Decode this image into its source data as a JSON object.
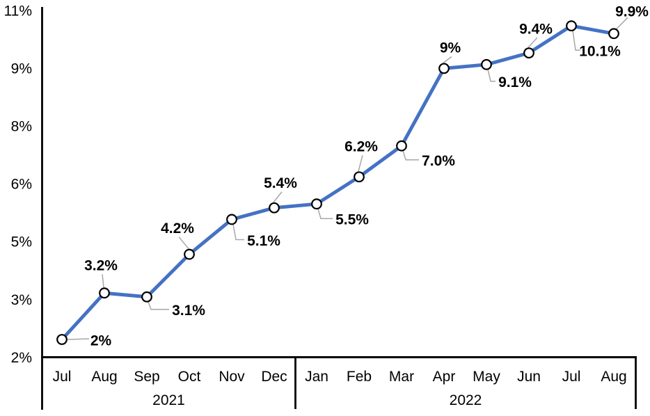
{
  "chart_data": {
    "type": "line",
    "title": "",
    "y_axis": {
      "tick_labels": [
        "11%",
        "9%",
        "8%",
        "6%",
        "5%",
        "3%",
        "2%"
      ],
      "min": 2,
      "max": 11,
      "unit": "%"
    },
    "x_groups": [
      {
        "year": "2021",
        "months": [
          "Jul",
          "Aug",
          "Sep",
          "Oct",
          "Nov",
          "Dec"
        ]
      },
      {
        "year": "2022",
        "months": [
          "Jan",
          "Feb",
          "Mar",
          "Apr",
          "May",
          "Jun",
          "Jul",
          "Aug"
        ]
      }
    ],
    "series": [
      {
        "name": "monthly-percentage",
        "points": [
          {
            "month": "Jul 2021",
            "value": 2.0,
            "label": "2%",
            "label_side": "right",
            "label_offset": [
              56,
              1
            ]
          },
          {
            "month": "Aug 2021",
            "value": 3.2,
            "label": "3.2%",
            "label_side": "above",
            "label_offset": [
              -5,
              -40
            ]
          },
          {
            "month": "Sep 2021",
            "value": 3.1,
            "label": "3.1%",
            "label_side": "below-right",
            "label_offset": [
              60,
              19
            ]
          },
          {
            "month": "Oct 2021",
            "value": 4.2,
            "label": "4.2%",
            "label_side": "above",
            "label_offset": [
              -17,
              -38
            ]
          },
          {
            "month": "Nov 2021",
            "value": 5.1,
            "label": "5.1%",
            "label_side": "below-right",
            "label_offset": [
              46,
              30
            ]
          },
          {
            "month": "Dec 2021",
            "value": 5.4,
            "label": "5.4%",
            "label_side": "above",
            "label_offset": [
              9,
              -36
            ]
          },
          {
            "month": "Jan 2022",
            "value": 5.5,
            "label": "5.5%",
            "label_side": "below-right",
            "label_offset": [
              51,
              22
            ]
          },
          {
            "month": "Feb 2022",
            "value": 6.2,
            "label": "6.2%",
            "label_side": "above",
            "label_offset": [
              3,
              -44
            ]
          },
          {
            "month": "Mar 2022",
            "value": 7.0,
            "label": "7.0%",
            "label_side": "below-right",
            "label_offset": [
              53,
              21
            ]
          },
          {
            "month": "Apr 2022",
            "value": 9.0,
            "label": "9%",
            "label_side": "above",
            "label_offset": [
              9,
              -30
            ]
          },
          {
            "month": "May 2022",
            "value": 9.1,
            "label": "9.1%",
            "label_side": "below-right",
            "label_offset": [
              41,
              25
            ]
          },
          {
            "month": "Jun 2022",
            "value": 9.4,
            "label": "9.4%",
            "label_side": "above",
            "label_offset": [
              10,
              -35
            ]
          },
          {
            "month": "Jul 2022",
            "value": 10.1,
            "label": "10.1%",
            "label_side": "below-right",
            "label_offset": [
              41,
              36
            ]
          },
          {
            "month": "Aug 2022",
            "value": 9.9,
            "label": "9.9%",
            "label_side": "above-right",
            "label_offset": [
              26,
              -32
            ]
          }
        ]
      }
    ],
    "grid": false,
    "legend": "none",
    "colors": {
      "line": "#4472C4",
      "marker_fill": "#FFFFFF",
      "marker_stroke": "#000000",
      "leader": "#A6A6A6",
      "axis": "#000000",
      "text": "#000000"
    }
  }
}
